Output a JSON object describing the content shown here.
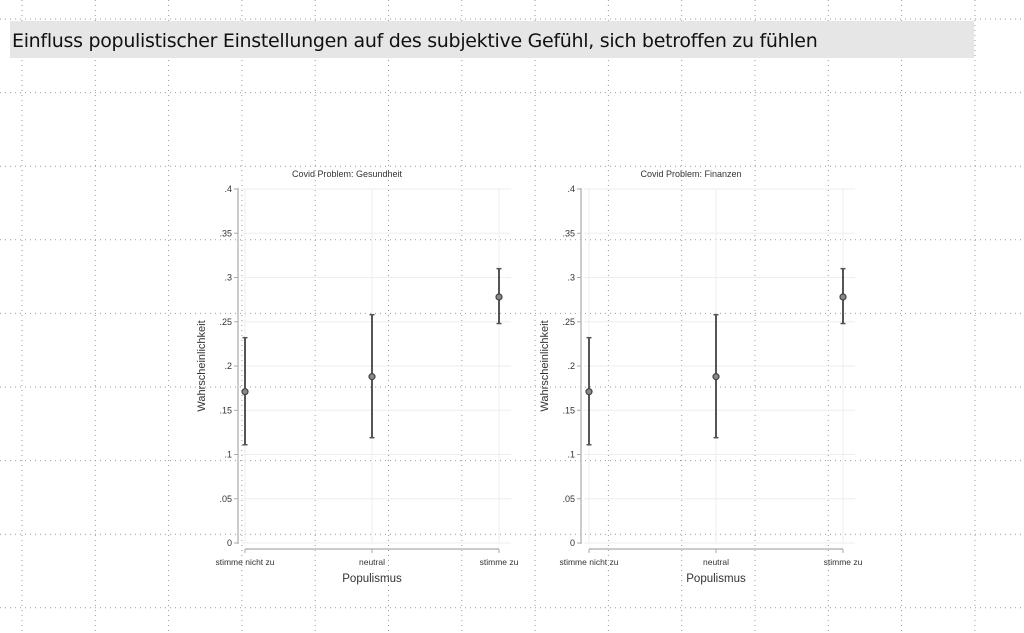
{
  "slide": {
    "title": "Einfluss populistischer Einstellungen auf des subjektive Gefühl, sich betroffen zu fühlen",
    "title_bar_color": "#e6e6e6"
  },
  "chart_data": [
    {
      "type": "scatter",
      "subtype": "point-with-error-bars",
      "title": "Covid Problem: Gesundheit",
      "xlabel": "Populismus",
      "ylabel": "Wahrscheinlichkeit",
      "categories": [
        "stimme nicht zu",
        "neutral",
        "stimme zu"
      ],
      "values": [
        0.171,
        0.188,
        0.278
      ],
      "ci_lower": [
        0.111,
        0.119,
        0.248
      ],
      "ci_upper": [
        0.232,
        0.258,
        0.31
      ],
      "ylim": [
        0,
        0.4
      ],
      "yticks": [
        0,
        0.05,
        0.1,
        0.15,
        0.2,
        0.25,
        0.3,
        0.35,
        0.4
      ],
      "ytick_labels": [
        "0",
        ".05",
        ".1",
        ".15",
        ".2",
        ".25",
        ".3",
        ".35",
        ".4"
      ],
      "grid": true,
      "color": "#555555"
    },
    {
      "type": "scatter",
      "subtype": "point-with-error-bars",
      "title": "Covid Problem: Finanzen",
      "xlabel": "Populismus",
      "ylabel": "Wahrscheinlichkeit",
      "categories": [
        "stimme nicht zu",
        "neutral",
        "stimme zu"
      ],
      "values": [
        0.171,
        0.188,
        0.278
      ],
      "ci_lower": [
        0.111,
        0.119,
        0.248
      ],
      "ci_upper": [
        0.232,
        0.258,
        0.31
      ],
      "ylim": [
        0,
        0.4
      ],
      "yticks": [
        0,
        0.05,
        0.1,
        0.15,
        0.2,
        0.25,
        0.3,
        0.35,
        0.4
      ],
      "ytick_labels": [
        "0",
        ".05",
        ".1",
        ".15",
        ".2",
        ".25",
        ".3",
        ".35",
        ".4"
      ],
      "grid": true,
      "color": "#555555"
    }
  ]
}
